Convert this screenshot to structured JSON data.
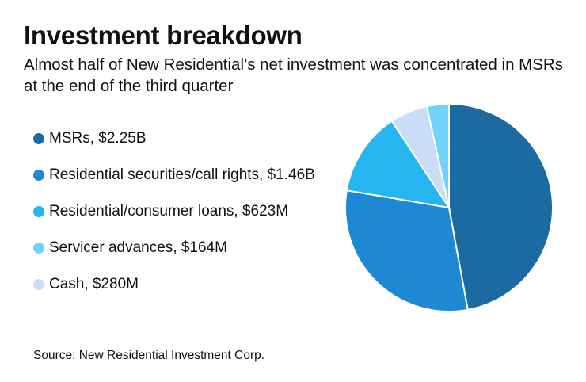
{
  "header": {
    "title": "Investment breakdown",
    "subtitle": "Almost half of New Residential’s net investment was concentrated in MSRs at the end of the third quarter"
  },
  "legend": [
    {
      "label": "MSRs, $2.25B",
      "color": "#1b6aa1"
    },
    {
      "label": "Residential securities/call rights, $1.46B",
      "color": "#1e88d4"
    },
    {
      "label": "Residential/consumer loans, $623M",
      "color": "#25b6f0"
    },
    {
      "label": "Servicer advances, $164M",
      "color": "#70d3fb"
    },
    {
      "label": "Cash, $280M",
      "color": "#c9def6"
    }
  ],
  "footer": {
    "source": "Source: New Residential Investment Corp."
  },
  "chart_data": {
    "type": "pie",
    "title": "Investment breakdown",
    "subtitle": "Almost half of New Residential’s net investment was concentrated in MSRs at the end of the third quarter",
    "unit": "USD millions",
    "categories": [
      "MSRs",
      "Residential securities/call rights",
      "Residential/consumer loans",
      "Cash",
      "Servicer advances"
    ],
    "values": [
      2250,
      1460,
      623,
      280,
      164
    ],
    "colors": [
      "#1b6aa1",
      "#1e88d4",
      "#25b6f0",
      "#c9def6",
      "#70d3fb"
    ],
    "start_angle": "12 o'clock, clockwise",
    "legend_position": "left",
    "source": "Source: New Residential Investment Corp."
  }
}
